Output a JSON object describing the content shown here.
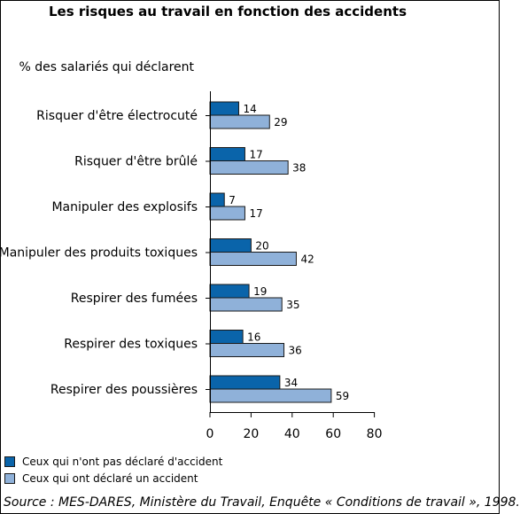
{
  "chart_data": {
    "type": "bar",
    "orientation": "horizontal",
    "title": "Les risques au travail en fonction des accidents",
    "subtitle": "% des salariés qui déclarent",
    "categories": [
      "Risquer d'être électrocuté",
      "Risquer d'être brûlé",
      "Manipuler des explosifs",
      "Manipuler des produits toxiques",
      "Respirer des fumées",
      "Respirer des toxiques",
      "Respirer des poussières"
    ],
    "series": [
      {
        "name": "Ceux qui n'ont pas déclaré d'accident",
        "color": "#0a64aa",
        "values": [
          14,
          17,
          7,
          20,
          19,
          16,
          34
        ]
      },
      {
        "name": "Ceux qui ont déclaré un accident",
        "color": "#8fb1d9",
        "values": [
          29,
          38,
          17,
          42,
          35,
          36,
          59
        ]
      }
    ],
    "xlim": [
      0,
      80
    ],
    "xticks": [
      "0",
      "20",
      "40",
      "60",
      "80"
    ],
    "legend_position": "bottom-left",
    "grid": false,
    "source": "Source : MES-DARES, Ministère du Travail, Enquête « Conditions de travail », 1998."
  }
}
